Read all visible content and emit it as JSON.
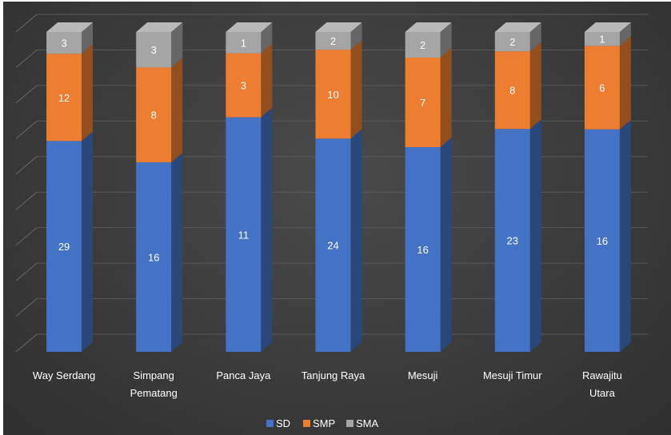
{
  "chart_data": {
    "type": "bar",
    "stacked": true,
    "style": "3d",
    "categories": [
      [
        "Way Serdang"
      ],
      [
        "Simpang",
        "Pematang"
      ],
      [
        "Panca Jaya"
      ],
      [
        "Tanjung Raya"
      ],
      [
        "Mesuji"
      ],
      [
        "Mesuji Timur"
      ],
      [
        "Rawajitu",
        "Utara"
      ]
    ],
    "series": [
      {
        "name": "SD",
        "values": [
          29,
          16,
          11,
          24,
          16,
          23,
          16
        ],
        "color": "#4472c4"
      },
      {
        "name": "SMP",
        "values": [
          12,
          8,
          3,
          10,
          7,
          8,
          6
        ],
        "color": "#ed7d31"
      },
      {
        "name": "SMA",
        "values": [
          3,
          3,
          1,
          2,
          2,
          2,
          1
        ],
        "color": "#a5a5a5"
      }
    ],
    "percent_stacked": true,
    "grid": true,
    "legend_position": "bottom",
    "background": "#3d3d3d"
  }
}
